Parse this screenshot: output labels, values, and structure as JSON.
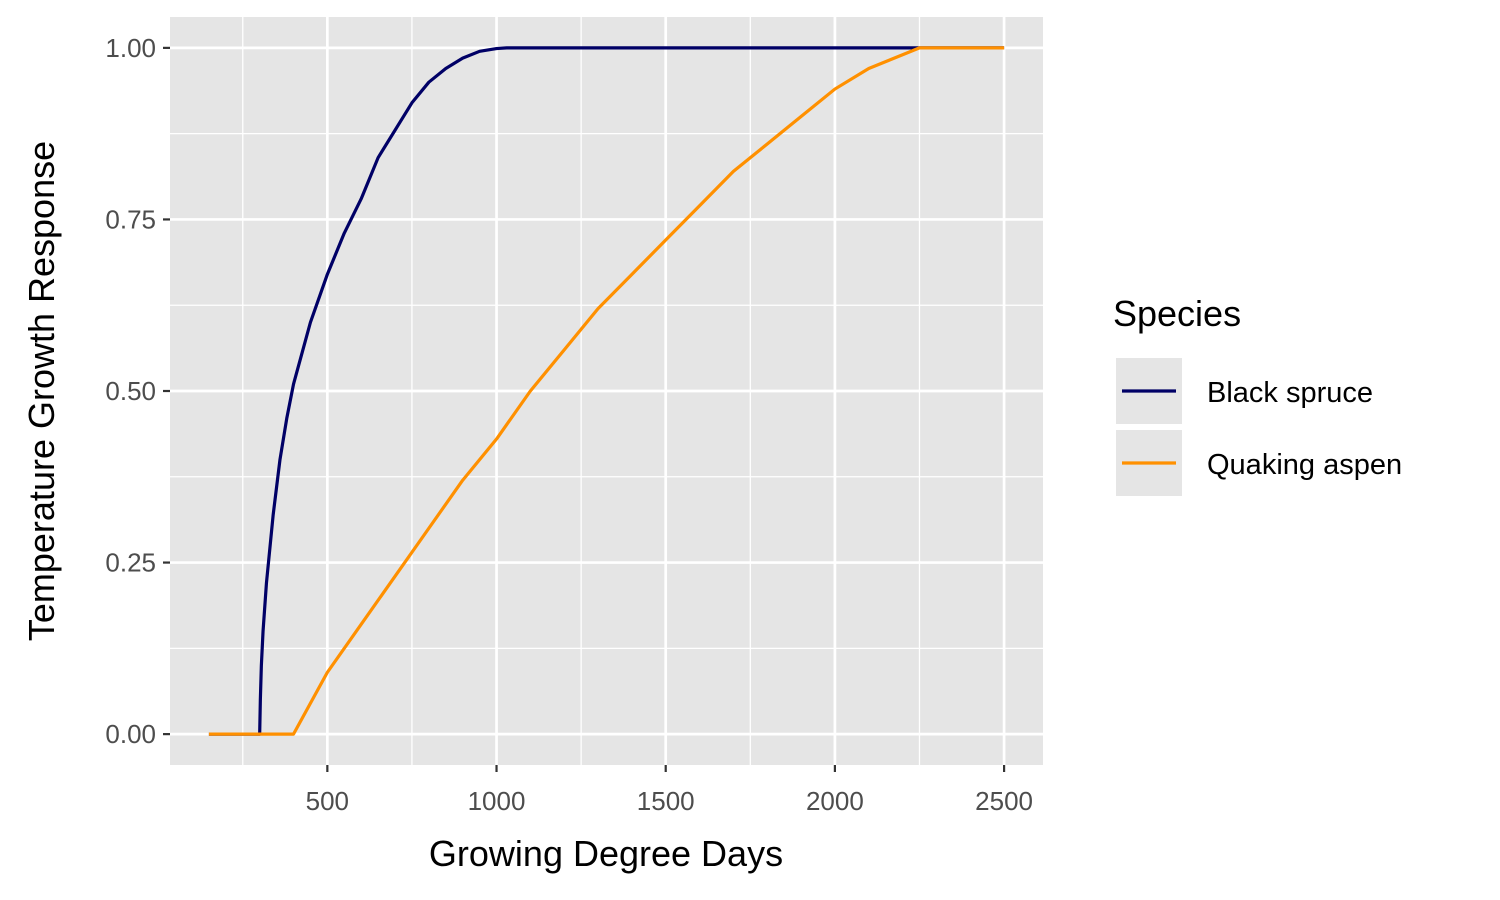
{
  "chart_data": {
    "type": "line",
    "title": "",
    "xlabel": "Growing Degree Days",
    "ylabel": "Temperature Growth Response",
    "xlim": [
      35,
      2615
    ],
    "ylim": [
      -0.045,
      1.045
    ],
    "x_ticks": [
      500,
      1000,
      1500,
      2000,
      2500
    ],
    "x_tick_labels": [
      "500",
      "1000",
      "1500",
      "2000",
      "2500"
    ],
    "y_ticks": [
      0,
      0.25,
      0.5,
      0.75,
      1.0
    ],
    "y_tick_labels": [
      "0.00",
      "0.25",
      "0.50",
      "0.75",
      "1.00"
    ],
    "grid": true,
    "panel_background": "#e5e5e5",
    "grid_color": "#ffffff",
    "legend": {
      "title": "Species",
      "placement": "right"
    },
    "series": [
      {
        "name": "Black spruce",
        "color": "#000066",
        "x": [
          150,
          200,
          250,
          299,
          300,
          302,
          305,
          310,
          320,
          340,
          360,
          380,
          400,
          450,
          500,
          550,
          600,
          650,
          700,
          750,
          800,
          850,
          900,
          950,
          1000,
          1030,
          1060,
          1080,
          1200,
          1500,
          2000,
          2500
        ],
        "y": [
          0,
          0,
          0,
          0,
          0,
          0.05,
          0.1,
          0.15,
          0.22,
          0.32,
          0.4,
          0.46,
          0.51,
          0.6,
          0.67,
          0.73,
          0.78,
          0.84,
          0.88,
          0.92,
          0.95,
          0.97,
          0.985,
          0.995,
          0.999,
          1.0,
          1.0,
          1.0,
          1.0,
          1.0,
          1.0,
          1.0
        ]
      },
      {
        "name": "Quaking aspen",
        "color": "#ff9000",
        "x": [
          150,
          200,
          300,
          400,
          500,
          600,
          700,
          800,
          900,
          1000,
          1100,
          1200,
          1300,
          1400,
          1500,
          1600,
          1700,
          1800,
          1900,
          2000,
          2100,
          2200,
          2250,
          2300,
          2400,
          2500
        ],
        "y": [
          0,
          0,
          0,
          0,
          0.09,
          0.16,
          0.23,
          0.3,
          0.37,
          0.43,
          0.5,
          0.56,
          0.62,
          0.67,
          0.72,
          0.77,
          0.82,
          0.86,
          0.9,
          0.94,
          0.97,
          0.99,
          1.0,
          1.0,
          1.0,
          1.0
        ]
      }
    ]
  }
}
